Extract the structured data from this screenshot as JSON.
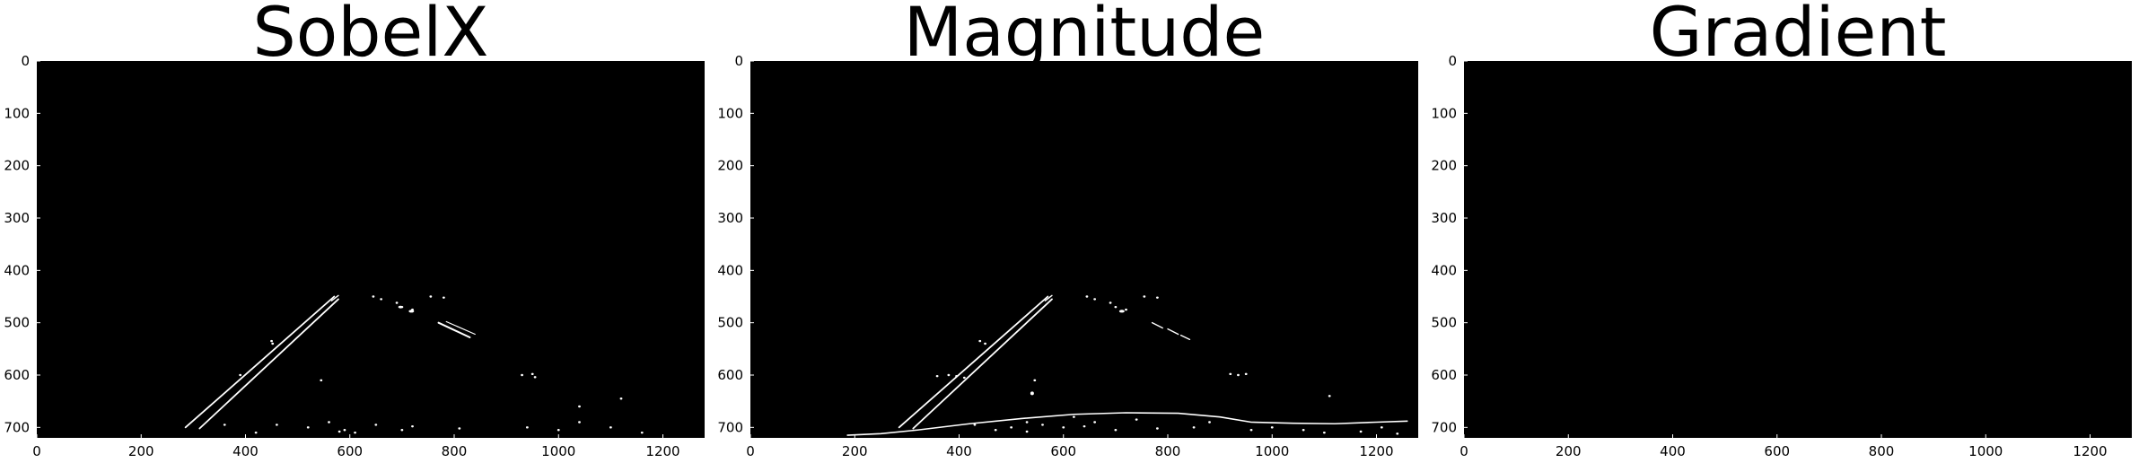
{
  "panels": [
    {
      "title": "SobelX",
      "content": "sobelx"
    },
    {
      "title": "Magnitude",
      "content": "magnitude"
    },
    {
      "title": "Gradient",
      "content": "gradient"
    }
  ],
  "axes": {
    "x_ticks": [
      0,
      200,
      400,
      600,
      800,
      1000,
      1200
    ],
    "y_ticks": [
      0,
      100,
      200,
      300,
      400,
      500,
      600,
      700
    ],
    "x_range": [
      0,
      1280
    ],
    "y_range": [
      0,
      720
    ]
  },
  "colors": {
    "background": "#000000",
    "edge": "#ffffff",
    "page": "#ffffff"
  }
}
